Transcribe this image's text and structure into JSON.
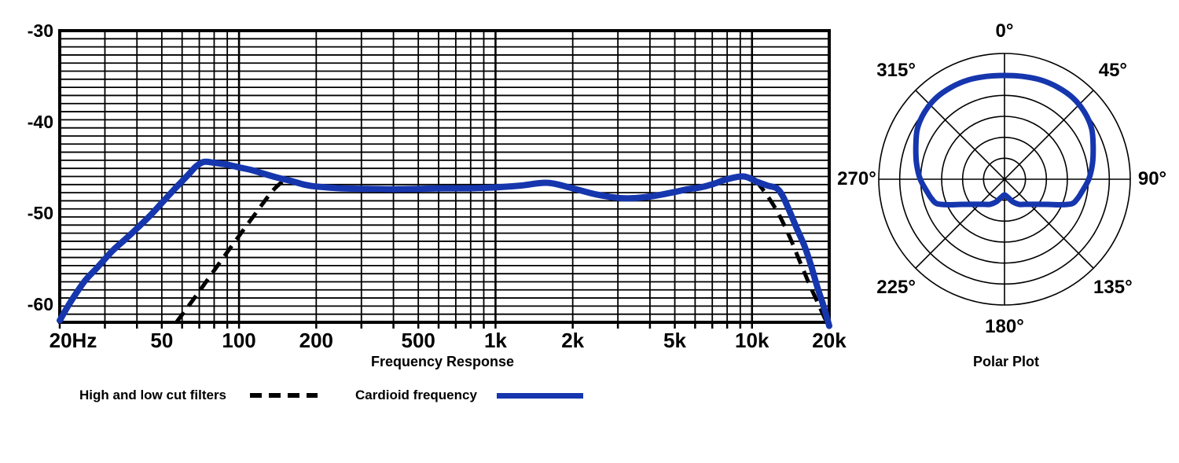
{
  "chart_data": [
    {
      "id": "frequency-response",
      "type": "line",
      "title": "Frequency Response",
      "x_scale": "log",
      "xlim": [
        20,
        20000
      ],
      "ylim": [
        -62,
        -30
      ],
      "x_ticks": [
        {
          "f": 20,
          "label": "20Hz"
        },
        {
          "f": 50,
          "label": "50"
        },
        {
          "f": 100,
          "label": "100"
        },
        {
          "f": 200,
          "label": "200"
        },
        {
          "f": 500,
          "label": "500"
        },
        {
          "f": 1000,
          "label": "1k"
        },
        {
          "f": 2000,
          "label": "2k"
        },
        {
          "f": 5000,
          "label": "5k"
        },
        {
          "f": 10000,
          "label": "10k"
        },
        {
          "f": 20000,
          "label": "20k"
        }
      ],
      "y_ticks": [
        {
          "db": -30,
          "label": "-30"
        },
        {
          "db": -40,
          "label": "-40"
        },
        {
          "db": -50,
          "label": "-50"
        },
        {
          "db": -60,
          "label": "-60"
        }
      ],
      "grid": {
        "h_divisions": 36,
        "v_freqs": [
          20,
          30,
          40,
          50,
          60,
          70,
          80,
          90,
          100,
          200,
          300,
          400,
          500,
          600,
          700,
          800,
          900,
          1000,
          2000,
          3000,
          4000,
          5000,
          6000,
          7000,
          8000,
          9000,
          10000,
          20000
        ]
      },
      "series": [
        {
          "name": "Cardioid frequency",
          "style": "solid",
          "color": "#1636ae",
          "points": [
            [
              20,
              -61.8
            ],
            [
              22,
              -59.8
            ],
            [
              25,
              -57.5
            ],
            [
              28,
              -56.0
            ],
            [
              32,
              -54.2
            ],
            [
              36,
              -52.9
            ],
            [
              40,
              -51.7
            ],
            [
              45,
              -50.3
            ],
            [
              50,
              -48.9
            ],
            [
              56,
              -47.4
            ],
            [
              63,
              -45.9
            ],
            [
              68,
              -44.9
            ],
            [
              73,
              -44.4
            ],
            [
              80,
              -44.5
            ],
            [
              90,
              -44.7
            ],
            [
              100,
              -45.0
            ],
            [
              112,
              -45.3
            ],
            [
              125,
              -45.7
            ],
            [
              140,
              -46.1
            ],
            [
              160,
              -46.5
            ],
            [
              180,
              -46.9
            ],
            [
              200,
              -47.1
            ],
            [
              250,
              -47.3
            ],
            [
              315,
              -47.35
            ],
            [
              400,
              -47.4
            ],
            [
              500,
              -47.35
            ],
            [
              630,
              -47.3
            ],
            [
              800,
              -47.3
            ],
            [
              1000,
              -47.2
            ],
            [
              1250,
              -47.0
            ],
            [
              1600,
              -46.7
            ],
            [
              2000,
              -47.3
            ],
            [
              2500,
              -48.0
            ],
            [
              3200,
              -48.4
            ],
            [
              4000,
              -48.2
            ],
            [
              5000,
              -47.7
            ],
            [
              5600,
              -47.4
            ],
            [
              6300,
              -47.2
            ],
            [
              7100,
              -46.8
            ],
            [
              8000,
              -46.3
            ],
            [
              9300,
              -46.0
            ],
            [
              10500,
              -46.6
            ],
            [
              11500,
              -47.0
            ],
            [
              12500,
              -47.3
            ],
            [
              13200,
              -48.2
            ],
            [
              14000,
              -49.8
            ],
            [
              15000,
              -51.8
            ],
            [
              16000,
              -53.6
            ],
            [
              17000,
              -55.8
            ],
            [
              18000,
              -58.2
            ],
            [
              19000,
              -60.2
            ],
            [
              20000,
              -62.4
            ]
          ]
        },
        {
          "name": "High and low cut filters",
          "style": "dashed",
          "color": "#000000",
          "segments": [
            [
              [
                57,
                -62
              ],
              [
                70,
                -58.6
              ],
              [
                90,
                -54.3
              ],
              [
                115,
                -50.2
              ],
              [
                135,
                -47.6
              ],
              [
                150,
                -46.4
              ]
            ],
            [
              [
                10400,
                -46.5
              ],
              [
                11600,
                -48.3
              ],
              [
                12800,
                -50.3
              ],
              [
                14000,
                -52.6
              ],
              [
                15300,
                -55.2
              ],
              [
                16600,
                -57.6
              ],
              [
                18000,
                -59.8
              ],
              [
                19400,
                -61.8
              ]
            ]
          ]
        }
      ]
    },
    {
      "id": "polar-plot",
      "type": "line",
      "polar": true,
      "title": "Polar Plot",
      "pattern": "cardioid",
      "rings": 6,
      "angle_step_deg": 45,
      "color": "#1636ae",
      "angle_labels": [
        {
          "deg": 0,
          "label": "0°"
        },
        {
          "deg": 45,
          "label": "45°"
        },
        {
          "deg": 90,
          "label": "90°"
        },
        {
          "deg": 135,
          "label": "135°"
        },
        {
          "deg": 180,
          "label": "180°"
        },
        {
          "deg": 225,
          "label": "225°"
        },
        {
          "deg": 270,
          "label": "270°"
        },
        {
          "deg": 315,
          "label": "315°"
        }
      ],
      "points_theta_r": [
        [
          0,
          0.825
        ],
        [
          10,
          0.83
        ],
        [
          20,
          0.84
        ],
        [
          30,
          0.845
        ],
        [
          40,
          0.845
        ],
        [
          50,
          0.83
        ],
        [
          60,
          0.8
        ],
        [
          70,
          0.75
        ],
        [
          80,
          0.71
        ],
        [
          90,
          0.67
        ],
        [
          100,
          0.62
        ],
        [
          105,
          0.6
        ],
        [
          110,
          0.57
        ],
        [
          115,
          0.48
        ],
        [
          120,
          0.4
        ],
        [
          130,
          0.31
        ],
        [
          140,
          0.26
        ],
        [
          150,
          0.23
        ],
        [
          160,
          0.19
        ],
        [
          170,
          0.145
        ],
        [
          180,
          0.125
        ]
      ],
      "symmetric_mirror": true
    }
  ],
  "legend": {
    "items": [
      {
        "label": "High and low cut filters",
        "style": "dashed",
        "color": "#000000"
      },
      {
        "label": "Cardioid frequency",
        "style": "solid",
        "color": "#1636ae"
      }
    ]
  }
}
